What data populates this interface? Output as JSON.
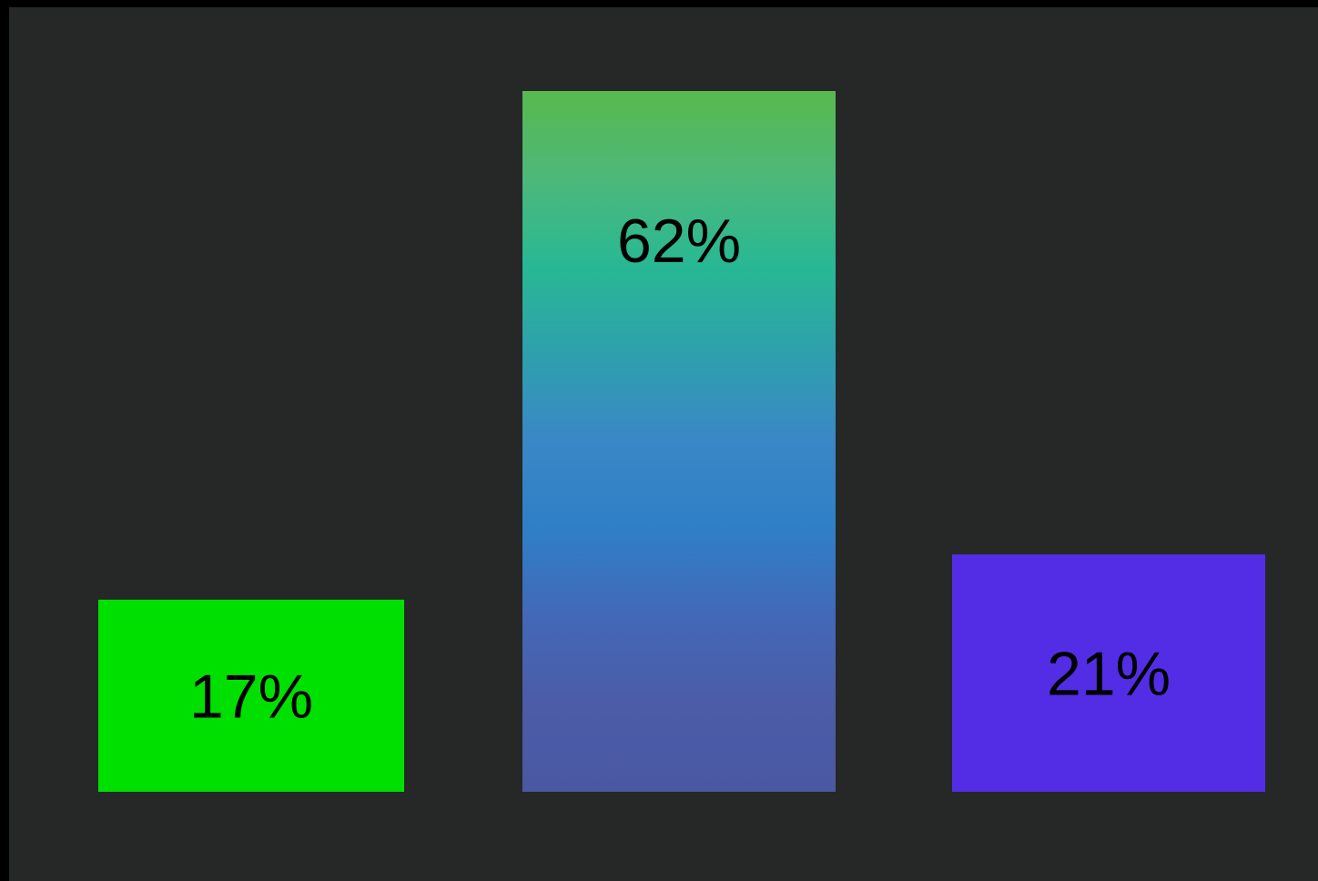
{
  "chart_data": {
    "type": "bar",
    "categories": [
      "",
      "",
      ""
    ],
    "values": [
      17,
      62,
      21
    ],
    "labels": [
      "17%",
      "62%",
      "21%"
    ],
    "unit": "%",
    "ylim": [
      0,
      62
    ],
    "grid": false,
    "legend": "none",
    "bar_colors": [
      {
        "kind": "solid",
        "stops": [
          "#00e000"
        ]
      },
      {
        "kind": "gradient",
        "stops": [
          "#58b94e",
          "#4db87a",
          "#28b894",
          "#2ea0ad",
          "#3a87c6",
          "#2f7fc7",
          "#4368b7",
          "#4c5ca7",
          "#4a58a3"
        ]
      },
      {
        "kind": "solid",
        "stops": [
          "#532de6"
        ]
      }
    ]
  },
  "colors": {
    "background": "#262727",
    "border": "#000000",
    "label_text": "#000000"
  }
}
